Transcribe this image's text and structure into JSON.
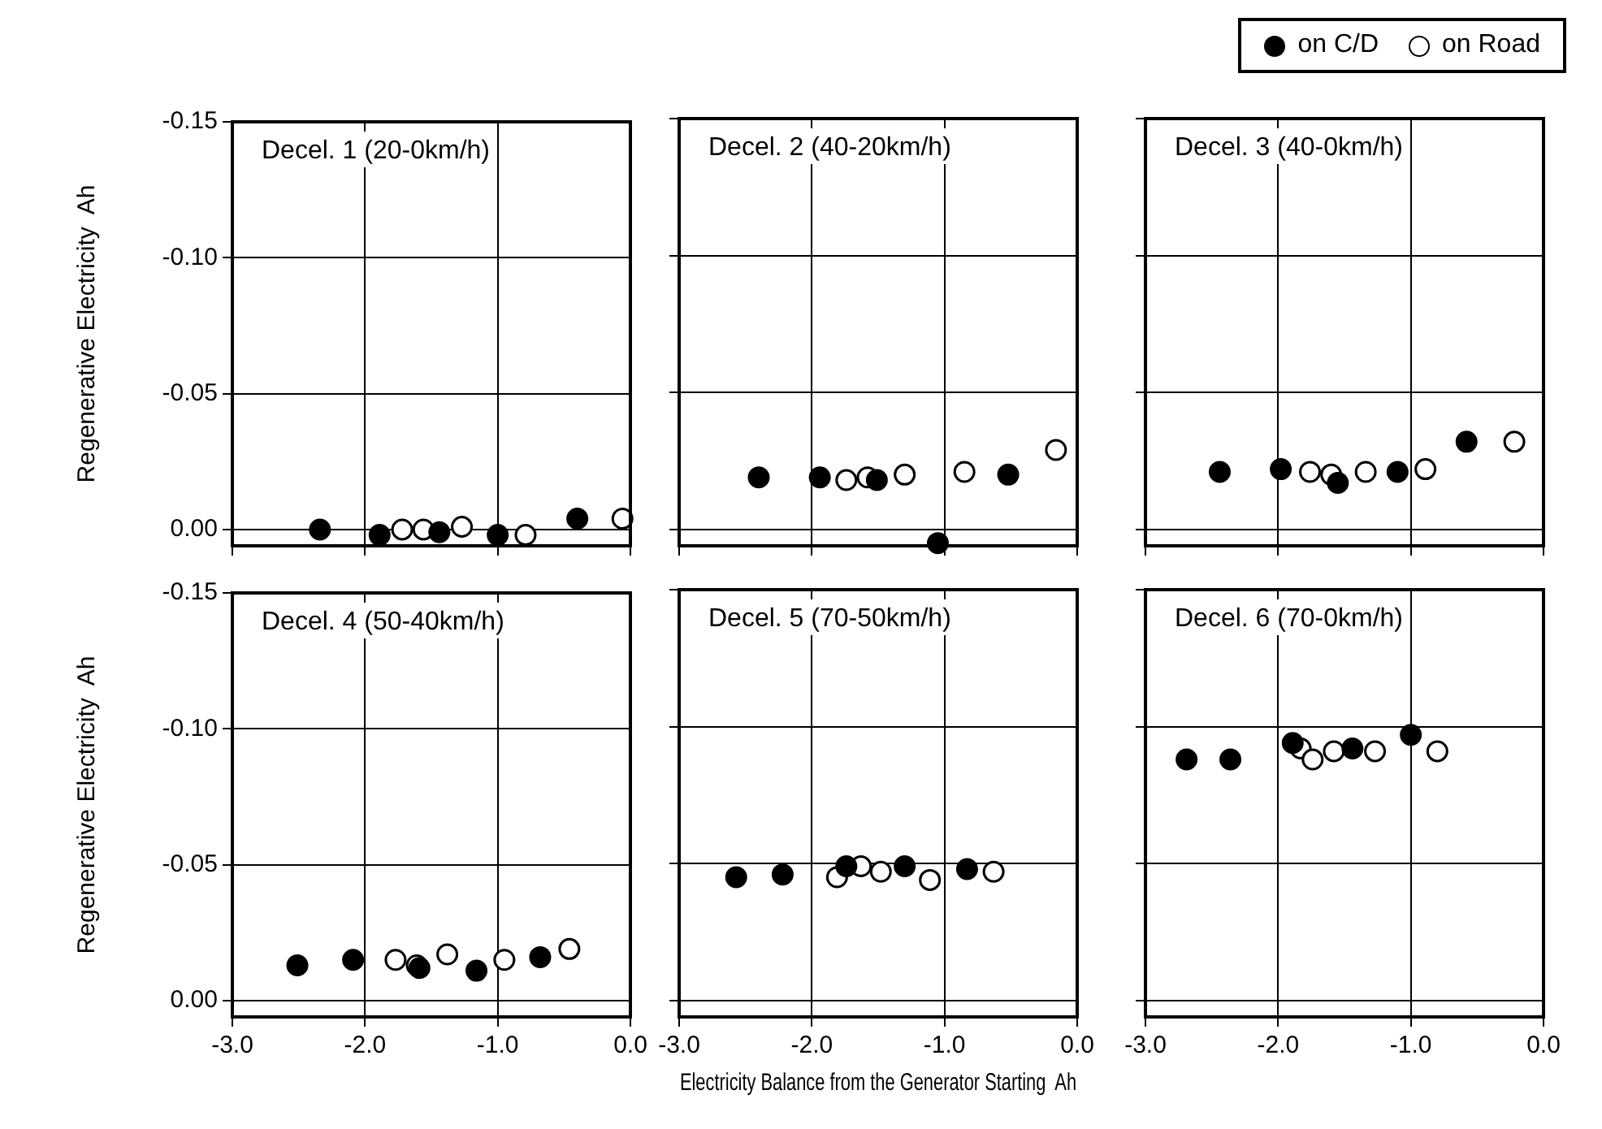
{
  "chart_data": [
    {
      "type": "scatter",
      "title": "Decel. 1 (20-0km/h)",
      "ylabel": "Regenerative Electricity  Ah",
      "xlim": [
        -3,
        0
      ],
      "xticks": [
        {
          "value": -3,
          "label": null
        },
        {
          "value": -2,
          "label": null
        },
        {
          "value": -1,
          "label": null
        },
        {
          "value": 0,
          "label": null
        }
      ],
      "ylim": [
        0.006,
        -0.15
      ],
      "yticks": [
        {
          "value": 0,
          "label": "0.00"
        },
        {
          "value": -0.05,
          "label": "-0.05"
        },
        {
          "value": -0.1,
          "label": "-0.10"
        },
        {
          "value": -0.15,
          "label": "-0.15"
        }
      ],
      "grid": true,
      "marker": "circle",
      "tick_labels": "y",
      "series": [
        {
          "color": "#000000",
          "x": [
            -2.34,
            -1.89,
            -1.44,
            -1.0,
            -0.4
          ],
          "values": [
            0.0,
            0.002,
            0.001,
            0.002,
            -0.004
          ]
        },
        {
          "color": "#ffffff",
          "x": [
            -1.72,
            -1.56,
            -1.27,
            -0.79,
            -0.06
          ],
          "values": [
            0.0,
            0.0,
            -0.001,
            0.002,
            -0.004
          ]
        }
      ]
    },
    {
      "type": "scatter",
      "title": "Decel. 2 (40-20km/h)",
      "xlim": [
        -3,
        0
      ],
      "xticks": [
        {
          "value": -3,
          "label": null
        },
        {
          "value": -2,
          "label": null
        },
        {
          "value": -1,
          "label": null
        },
        {
          "value": 0,
          "label": null
        }
      ],
      "ylim": [
        0.006,
        -0.15
      ],
      "yticks": [
        {
          "value": 0,
          "label": null
        },
        {
          "value": -0.05,
          "label": null
        },
        {
          "value": -0.1,
          "label": null
        },
        {
          "value": -0.15,
          "label": null
        }
      ],
      "grid": true,
      "marker": "circle",
      "tick_labels": false,
      "series": [
        {
          "color": "#000000",
          "x": [
            -2.4,
            -1.94,
            -1.51,
            -0.52,
            -1.05
          ],
          "values": [
            -0.019,
            -0.019,
            -0.018,
            -0.02,
            0.005
          ]
        },
        {
          "color": "#ffffff",
          "x": [
            -1.74,
            -1.58,
            -1.3,
            -0.85,
            -0.16
          ],
          "values": [
            -0.018,
            -0.019,
            -0.02,
            -0.021,
            -0.029
          ]
        }
      ]
    },
    {
      "type": "scatter",
      "title": "Decel. 3 (40-0km/h)",
      "xlim": [
        -3,
        0
      ],
      "xticks": [
        {
          "value": -3,
          "label": null
        },
        {
          "value": -2,
          "label": null
        },
        {
          "value": -1,
          "label": null
        },
        {
          "value": 0,
          "label": null
        }
      ],
      "ylim": [
        0.006,
        -0.15
      ],
      "yticks": [
        {
          "value": 0,
          "label": null
        },
        {
          "value": -0.05,
          "label": null
        },
        {
          "value": -0.1,
          "label": null
        },
        {
          "value": -0.15,
          "label": null
        }
      ],
      "grid": true,
      "marker": "circle",
      "tick_labels": false,
      "legend": "top right",
      "series": [
        {
          "name": "on C/D",
          "color": "#000000",
          "x": [
            -2.44,
            -1.98,
            -1.55,
            -1.1,
            -0.58
          ],
          "values": [
            -0.021,
            -0.022,
            -0.017,
            -0.021,
            -0.032
          ]
        },
        {
          "name": "on Road",
          "color": "#ffffff",
          "x": [
            -1.76,
            -1.6,
            -1.34,
            -0.89,
            -0.22
          ],
          "values": [
            -0.021,
            -0.02,
            -0.021,
            -0.022,
            -0.032
          ]
        }
      ]
    },
    {
      "type": "scatter",
      "title": "Decel. 4 (50-40km/h)",
      "ylabel": "Regenerative Electricity  Ah",
      "xlim": [
        -3,
        0
      ],
      "xticks": [
        {
          "value": -3,
          "label": "-3.0"
        },
        {
          "value": -2,
          "label": "-2.0"
        },
        {
          "value": -1,
          "label": "-1.0"
        },
        {
          "value": 0,
          "label": "0.0"
        }
      ],
      "ylim": [
        0.006,
        -0.15
      ],
      "yticks": [
        {
          "value": 0,
          "label": "0.00"
        },
        {
          "value": -0.05,
          "label": "-0.05"
        },
        {
          "value": -0.1,
          "label": "-0.10"
        },
        {
          "value": -0.15,
          "label": "-0.15"
        }
      ],
      "grid": true,
      "marker": "circle",
      "series": [
        {
          "color": "#000000",
          "x": [
            -2.51,
            -2.09,
            -1.59,
            -1.16,
            -0.68
          ],
          "values": [
            -0.013,
            -0.015,
            -0.012,
            -0.011,
            -0.016
          ]
        },
        {
          "color": "#ffffff",
          "x": [
            -1.77,
            -1.61,
            -1.38,
            -0.95,
            -0.46
          ],
          "values": [
            -0.015,
            -0.013,
            -0.017,
            -0.015,
            -0.019
          ]
        }
      ]
    },
    {
      "type": "scatter",
      "title": "Decel. 5 (70-50km/h)",
      "xlabel": "Electricity Balance from the Generator Starting  Ah",
      "xlim": [
        -3,
        0
      ],
      "xticks": [
        {
          "value": -3,
          "label": "-3.0"
        },
        {
          "value": -2,
          "label": "-2.0"
        },
        {
          "value": -1,
          "label": "-1.0"
        },
        {
          "value": 0,
          "label": "0.0"
        }
      ],
      "ylim": [
        0.006,
        -0.15
      ],
      "yticks": [
        {
          "value": 0,
          "label": null
        },
        {
          "value": -0.05,
          "label": null
        },
        {
          "value": -0.1,
          "label": null
        },
        {
          "value": -0.15,
          "label": null
        }
      ],
      "grid": true,
      "marker": "circle",
      "tick_labels": "x",
      "series": [
        {
          "color": "#000000",
          "x": [
            -2.57,
            -2.22,
            -1.74,
            -1.3,
            -0.83
          ],
          "values": [
            -0.045,
            -0.046,
            -0.049,
            -0.049,
            -0.048
          ]
        },
        {
          "color": "#ffffff",
          "x": [
            -1.81,
            -1.63,
            -1.48,
            -1.11,
            -0.63
          ],
          "values": [
            -0.045,
            -0.049,
            -0.047,
            -0.044,
            -0.047
          ]
        }
      ]
    },
    {
      "type": "scatter",
      "title": "Decel. 6 (70-0km/h)",
      "xlim": [
        -3,
        0
      ],
      "xticks": [
        {
          "value": -3,
          "label": "-3.0"
        },
        {
          "value": -2,
          "label": "-2.0"
        },
        {
          "value": -1,
          "label": "-1.0"
        },
        {
          "value": 0,
          "label": "0.0"
        }
      ],
      "ylim": [
        0.006,
        -0.15
      ],
      "yticks": [
        {
          "value": 0,
          "label": null
        },
        {
          "value": -0.05,
          "label": null
        },
        {
          "value": -0.1,
          "label": null
        },
        {
          "value": -0.15,
          "label": null
        }
      ],
      "grid": true,
      "marker": "circle",
      "tick_labels": "x",
      "series": [
        {
          "color": "#000000",
          "x": [
            -2.69,
            -2.36,
            -1.89,
            -1.44,
            -1.0
          ],
          "values": [
            -0.088,
            -0.088,
            -0.094,
            -0.092,
            -0.097
          ]
        },
        {
          "color": "#ffffff",
          "x": [
            -1.83,
            -1.74,
            -1.58,
            -1.27,
            -0.8
          ],
          "values": [
            -0.092,
            -0.088,
            -0.091,
            -0.091,
            -0.091
          ]
        }
      ]
    }
  ]
}
